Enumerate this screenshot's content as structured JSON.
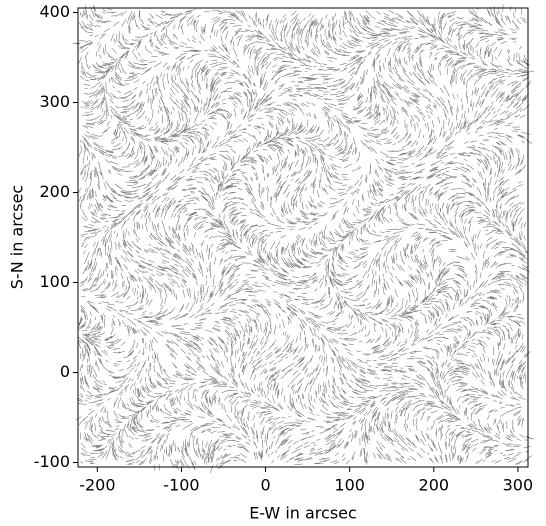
{
  "chart_data": {
    "type": "quiver",
    "xlabel": "E-W in arcsec",
    "ylabel": "S-N in arcsec",
    "xlim": [
      -223,
      312
    ],
    "ylim": [
      -105,
      405
    ],
    "xticks": [
      -200,
      -100,
      0,
      100,
      200,
      300
    ],
    "yticks": [
      -100,
      0,
      100,
      200,
      300,
      400
    ],
    "color": "#444444"
  }
}
